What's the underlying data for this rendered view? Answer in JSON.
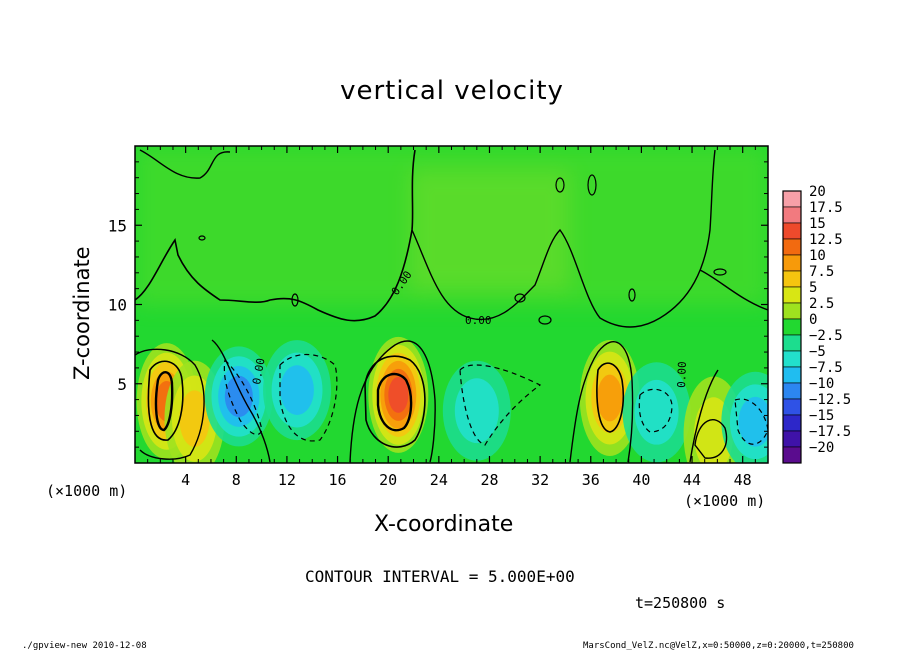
{
  "chart_data": {
    "type": "heatmap",
    "title": "vertical velocity",
    "xlabel": "X-coordinate",
    "ylabel": "Z-coordinate",
    "x_unit_label": "(×1000 m)",
    "xlim": [
      0,
      50
    ],
    "ylim": [
      0,
      20
    ],
    "x_ticks": [
      4,
      8,
      12,
      16,
      20,
      24,
      28,
      32,
      36,
      40,
      44,
      48
    ],
    "y_ticks": [
      5,
      10,
      15
    ],
    "colorbar": {
      "labels": [
        "20",
        "17.5",
        "15",
        "12.5",
        "10",
        "7.5",
        "5",
        "2.5",
        "0",
        "−2.5",
        "−5",
        "−7.5",
        "−10",
        "−12.5",
        "−15",
        "−17.5",
        "−20"
      ],
      "colors": [
        "#f7a0a8",
        "#f27a7f",
        "#ee4a2c",
        "#f26a10",
        "#f79a0a",
        "#f5c50f",
        "#d8e614",
        "#9ee21f",
        "#22d830",
        "#1cdd8e",
        "#22e0cc",
        "#20bdf0",
        "#2c86f0",
        "#2f52e6",
        "#2d27c9",
        "#3f12a8",
        "#5a0c8e"
      ]
    },
    "background_value": 0,
    "cells": [
      {
        "x": 2.5,
        "z": 3.9,
        "value": 13,
        "kind": "updraft"
      },
      {
        "x": 4.7,
        "z": 2.8,
        "value": 8,
        "kind": "updraft"
      },
      {
        "x": 8.2,
        "z": 4.2,
        "value": -10,
        "kind": "downdraft"
      },
      {
        "x": 12.8,
        "z": 4.6,
        "value": -8,
        "kind": "downdraft"
      },
      {
        "x": 20.8,
        "z": 4.3,
        "value": 14,
        "kind": "updraft"
      },
      {
        "x": 27.0,
        "z": 3.3,
        "value": -6,
        "kind": "downdraft"
      },
      {
        "x": 37.5,
        "z": 4.1,
        "value": 9,
        "kind": "updraft"
      },
      {
        "x": 41.2,
        "z": 3.2,
        "value": -5,
        "kind": "downdraft"
      },
      {
        "x": 45.7,
        "z": 1.8,
        "value": 6,
        "kind": "updraft"
      },
      {
        "x": 49.0,
        "z": 2.6,
        "value": -7,
        "kind": "downdraft"
      }
    ],
    "contour_interval": "CONTOUR INTERVAL = 5.000E+00",
    "zero_contour_label": "0.00",
    "time_label": "t=250800 s"
  },
  "footer": {
    "left": "./gpview-new   2010-12-08",
    "right": "MarsCond_VelZ.nc@VelZ,x=0:50000,z=0:20000,t=250800"
  }
}
